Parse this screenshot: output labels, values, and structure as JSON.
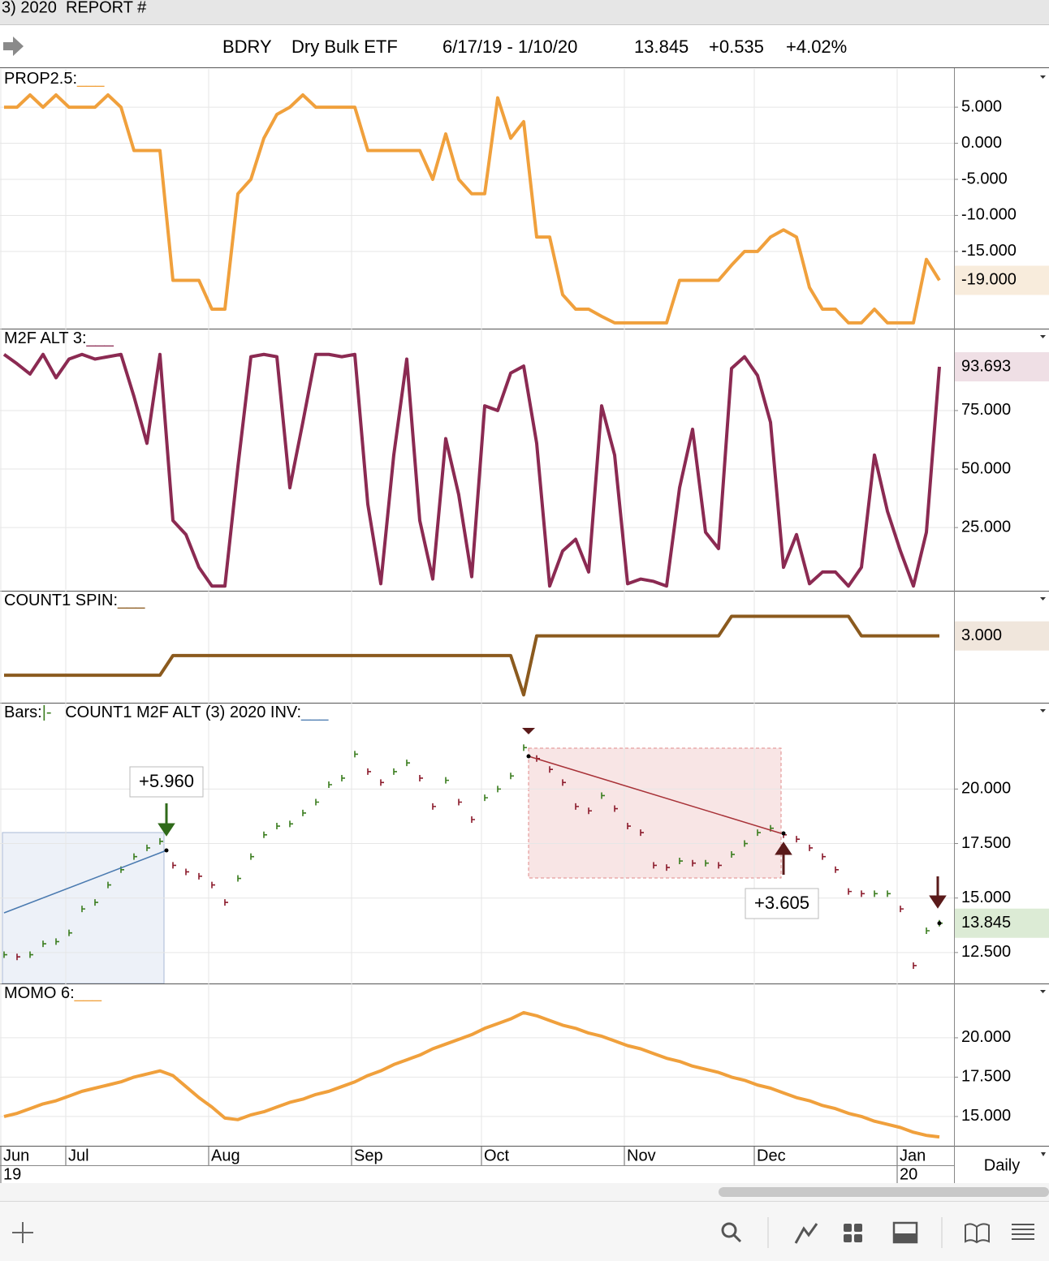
{
  "window_title": "3) 2020  REPORT #",
  "header": {
    "symbol": "BDRY",
    "name": "Dry Bulk ETF",
    "date_range": "6/17/19 - 1/10/20",
    "last": 13.845,
    "change": "+0.535",
    "change_pct": "+4.02%"
  },
  "x_axis": {
    "categories": [
      "Jun",
      null,
      null,
      null,
      null,
      "Jul",
      null,
      null,
      null,
      null,
      null,
      null,
      null,
      null,
      null,
      null,
      "Aug",
      null,
      null,
      null,
      null,
      null,
      null,
      null,
      null,
      null,
      null,
      "Sep",
      null,
      null,
      null,
      null,
      null,
      null,
      null,
      null,
      null,
      "Oct",
      null,
      null,
      null,
      null,
      null,
      null,
      null,
      null,
      null,
      null,
      "Nov",
      null,
      null,
      null,
      null,
      null,
      null,
      null,
      null,
      null,
      "Dec",
      null,
      null,
      null,
      null,
      null,
      null,
      null,
      null,
      null,
      null,
      "Jan",
      null,
      null,
      null
    ],
    "years": [
      "19",
      null,
      null,
      null,
      null,
      null,
      null,
      null,
      null,
      null,
      null,
      null,
      null,
      null,
      null,
      null,
      null,
      null,
      null,
      null,
      null,
      null,
      null,
      null,
      null,
      null,
      null,
      null,
      null,
      null,
      null,
      null,
      null,
      null,
      null,
      null,
      null,
      null,
      null,
      null,
      null,
      null,
      null,
      null,
      null,
      null,
      null,
      null,
      null,
      null,
      null,
      null,
      null,
      null,
      null,
      null,
      null,
      null,
      null,
      null,
      null,
      null,
      null,
      null,
      null,
      null,
      null,
      null,
      null,
      "20",
      null,
      null,
      null
    ],
    "period": "Daily"
  },
  "chart_data": [
    {
      "type": "line",
      "title_parts": [
        {
          "text": "PROP2.5:",
          "color": "#000000"
        },
        {
          "text": "___",
          "color": "#f0a03c"
        }
      ],
      "color": "#f0a03c",
      "tag_fill": "#f8ecdc",
      "tag_text_color": "#c97a22",
      "values": [
        5,
        5,
        6.7,
        5,
        6.7,
        5,
        5,
        5,
        6.7,
        5,
        -1,
        -1,
        -1,
        -19,
        -19,
        -19,
        -23,
        -23,
        -7,
        -5,
        0.7,
        4,
        5,
        6.7,
        5,
        5,
        5,
        5,
        -1,
        -1,
        -1,
        -1,
        -1,
        -5,
        1.3,
        -5,
        -7,
        -7,
        6.3,
        0.7,
        3,
        -13,
        -13,
        -21,
        -23,
        -23,
        -24,
        -24.9,
        -24.9,
        -24.9,
        -24.9,
        -24.9,
        -19,
        -19,
        -19,
        -19,
        -16.9,
        -15,
        -15,
        -13,
        -12,
        -13,
        -20,
        -23,
        -23,
        -24.9,
        -24.9,
        -23,
        -24.9,
        -24.9,
        -24.9,
        -16.1,
        -19
      ],
      "value_labels": [
        null,
        null,
        null,
        null,
        null,
        null,
        null,
        null,
        null,
        null,
        null,
        null,
        null,
        null,
        null,
        null,
        null,
        null,
        null,
        null,
        null,
        null,
        null,
        null,
        null,
        null,
        null,
        null,
        null,
        null,
        null,
        null,
        null,
        null,
        null,
        null,
        null,
        null,
        null,
        null,
        null,
        null,
        null,
        null,
        null,
        null,
        null,
        null,
        null,
        null,
        null,
        null,
        null,
        null,
        null,
        null,
        null,
        null,
        null,
        null,
        null,
        null,
        null,
        null,
        null,
        null,
        null,
        null,
        null,
        null,
        null,
        null,
        "-19.000"
      ],
      "ylim": [
        -25.7,
        10.3
      ],
      "yticks": [
        {
          "value": 5,
          "label": "5.000"
        },
        {
          "value": 0,
          "label": "0.000"
        },
        {
          "value": -5,
          "label": "-5.000"
        },
        {
          "value": -10,
          "label": "-10.000"
        },
        {
          "value": -15,
          "label": "-15.000"
        }
      ],
      "grid": true
    },
    {
      "type": "line",
      "title_parts": [
        {
          "text": "M2F ALT 3:",
          "color": "#000000"
        },
        {
          "text": "___",
          "color": "#8b2a52"
        }
      ],
      "color": "#8b2a52",
      "tag_fill": "#efdfe5",
      "tag_text_color": "#8b2a52",
      "values": [
        99,
        95,
        90.6,
        99,
        89,
        97,
        99,
        97,
        98,
        99,
        81,
        61,
        99,
        28,
        22,
        8,
        0,
        0,
        51,
        98,
        99,
        98,
        42,
        70,
        99,
        99,
        98,
        99,
        35,
        1,
        56,
        97,
        28,
        3,
        63,
        39,
        4,
        77,
        75,
        91,
        94,
        61,
        0,
        15,
        20,
        6,
        77,
        56,
        1,
        3,
        2,
        0,
        42,
        67,
        23,
        16,
        93,
        98,
        90,
        70,
        8,
        22,
        1,
        6,
        6,
        0,
        8,
        56,
        32,
        15,
        0,
        23,
        93.693
      ],
      "ylim": [
        -2,
        110
      ],
      "yticks": [
        {
          "value": 75,
          "label": "75.000"
        },
        {
          "value": 50,
          "label": "50.000"
        },
        {
          "value": 25,
          "label": "25.000"
        }
      ],
      "grid": true
    },
    {
      "type": "line",
      "title_parts": [
        {
          "text": "COUNT1 SPIN:",
          "color": "#000000"
        },
        {
          "text": "___",
          "color": "#8b5a1e"
        }
      ],
      "color": "#8b5a1e",
      "tag_fill": "#f0e6dc",
      "tag_text_color": "#8b5a1e",
      "values": [
        1,
        1,
        1,
        1,
        1,
        1,
        1,
        1,
        1,
        1,
        1,
        1,
        1,
        2,
        2,
        2,
        2,
        2,
        2,
        2,
        2,
        2,
        2,
        2,
        2,
        2,
        2,
        2,
        2,
        2,
        2,
        2,
        2,
        2,
        2,
        2,
        2,
        2,
        2,
        2,
        0,
        3,
        3,
        3,
        3,
        3,
        3,
        3,
        3,
        3,
        3,
        3,
        3,
        3,
        3,
        3,
        4,
        4,
        4,
        4,
        4,
        4,
        4,
        4,
        4,
        4,
        3,
        3,
        3,
        3,
        3,
        3,
        3
      ],
      "value_labels": [
        null,
        null,
        null,
        null,
        null,
        null,
        null,
        null,
        null,
        null,
        null,
        null,
        null,
        null,
        null,
        null,
        null,
        null,
        null,
        null,
        null,
        null,
        null,
        null,
        null,
        null,
        null,
        null,
        null,
        null,
        null,
        null,
        null,
        null,
        null,
        null,
        null,
        null,
        null,
        null,
        null,
        null,
        null,
        null,
        null,
        null,
        null,
        null,
        null,
        null,
        null,
        null,
        null,
        null,
        null,
        null,
        null,
        null,
        null,
        null,
        null,
        null,
        null,
        null,
        null,
        null,
        null,
        null,
        null,
        null,
        null,
        null,
        "3.000"
      ],
      "ylim": [
        -0.4,
        5.3
      ],
      "yticks": [],
      "grid": true
    },
    {
      "type": "tick",
      "title_parts": [
        {
          "text": "Bars:",
          "color": "#000000"
        },
        {
          "text": "|-",
          "color": "#3a7d1e"
        },
        {
          "text": "   COUNT1 M2F ALT (3) 2020 INV:",
          "color": "#000000"
        },
        {
          "text": "___",
          "color": "#4a7ab0"
        }
      ],
      "color": "#3a7d1e",
      "down_color": "#8b1a2b",
      "tag_fill": "#dcebd5",
      "tag_text_color": "#2f6a1a",
      "values": [
        12.4,
        12.3,
        12.4,
        12.9,
        13.0,
        13.4,
        14.5,
        14.8,
        15.6,
        16.3,
        16.9,
        17.3,
        17.6,
        16.5,
        16.2,
        16.0,
        15.6,
        14.8,
        15.9,
        16.9,
        17.9,
        18.3,
        18.4,
        18.9,
        19.4,
        20.2,
        20.5,
        21.6,
        20.8,
        20.3,
        20.8,
        21.2,
        20.5,
        19.2,
        20.4,
        19.4,
        18.6,
        19.6,
        20.0,
        20.6,
        21.9,
        21.4,
        20.9,
        20.3,
        19.2,
        19.0,
        19.7,
        19.1,
        18.3,
        18.0,
        16.5,
        16.4,
        16.7,
        16.6,
        16.6,
        16.5,
        17.0,
        17.5,
        18.0,
        18.2,
        17.9,
        17.7,
        17.3,
        16.9,
        16.3,
        15.3,
        15.2,
        15.2,
        15.2,
        14.5,
        11.9,
        13.5,
        13.845
      ],
      "ylim": [
        11.08,
        23.96
      ],
      "yticks": [
        {
          "value": 20,
          "label": "20.000"
        },
        {
          "value": 17.5,
          "label": "17.500"
        },
        {
          "value": 15,
          "label": "15.000"
        },
        {
          "value": 12.5,
          "label": "12.500"
        }
      ],
      "grid": true,
      "annotations": [
        {
          "text": "+5.960",
          "color": "#3a7d1e"
        },
        {
          "text": "+3.605",
          "color": "#8b1a1a"
        }
      ]
    },
    {
      "type": "line",
      "title_parts": [
        {
          "text": "MOMO 6:",
          "color": "#000000"
        },
        {
          "text": "___",
          "color": "#f0a03c"
        }
      ],
      "color": "#f0a03c",
      "values": [
        15.0,
        15.2,
        15.5,
        15.8,
        16.0,
        16.3,
        16.6,
        16.8,
        17.0,
        17.2,
        17.5,
        17.7,
        17.9,
        17.6,
        16.9,
        16.2,
        15.6,
        14.9,
        14.8,
        15.1,
        15.3,
        15.6,
        15.9,
        16.1,
        16.4,
        16.6,
        16.9,
        17.2,
        17.6,
        17.9,
        18.3,
        18.6,
        18.9,
        19.3,
        19.6,
        19.9,
        20.2,
        20.6,
        20.9,
        21.2,
        21.6,
        21.4,
        21.1,
        20.8,
        20.6,
        20.3,
        20.1,
        19.8,
        19.5,
        19.3,
        19.0,
        18.7,
        18.5,
        18.2,
        18.0,
        17.8,
        17.5,
        17.3,
        17.0,
        16.8,
        16.5,
        16.2,
        16.0,
        15.7,
        15.5,
        15.2,
        15.0,
        14.7,
        14.5,
        14.3,
        14.0,
        13.8,
        13.7
      ],
      "ylim": [
        13.14,
        23.45
      ],
      "yticks": [
        {
          "value": 20,
          "label": "20.000"
        },
        {
          "value": 17.5,
          "label": "17.500"
        },
        {
          "value": 15,
          "label": "15.000"
        }
      ],
      "grid": true
    }
  ]
}
